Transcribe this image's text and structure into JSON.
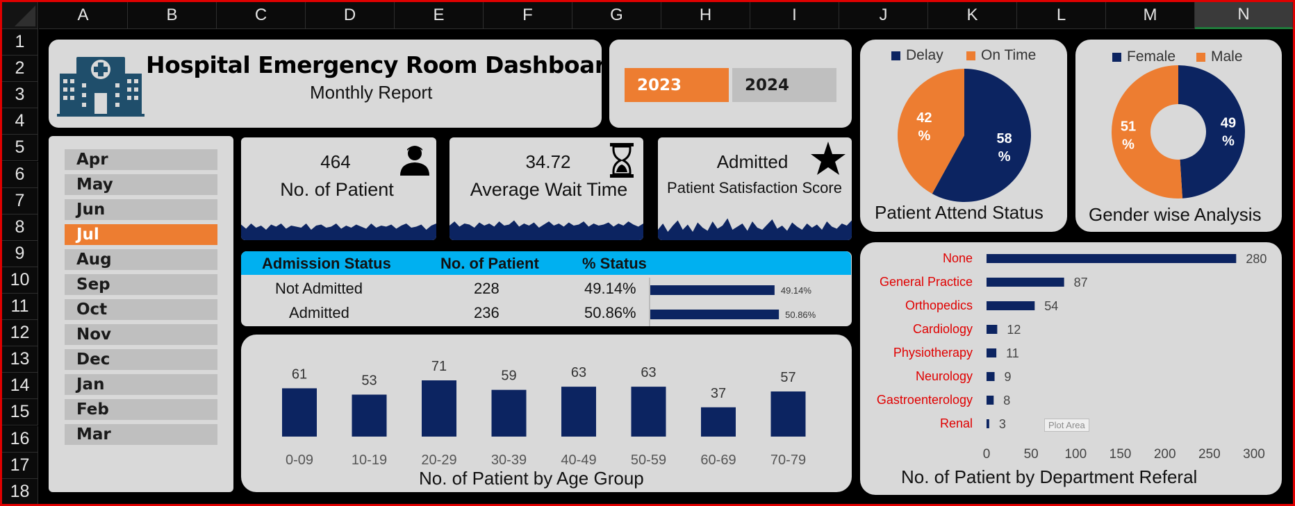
{
  "spreadsheet": {
    "columns": [
      "A",
      "B",
      "C",
      "D",
      "E",
      "F",
      "G",
      "H",
      "I",
      "J",
      "K",
      "L",
      "M",
      "N"
    ],
    "selected_column": "N",
    "rows": [
      "1",
      "2",
      "3",
      "4",
      "5",
      "6",
      "7",
      "8",
      "9",
      "10",
      "11",
      "12",
      "13",
      "14",
      "15",
      "16",
      "17",
      "18"
    ]
  },
  "header": {
    "title": "Hospital Emergency Room Dashboard",
    "subtitle": "Monthly Report",
    "icon": "hospital-building-icon"
  },
  "years": {
    "items": [
      {
        "label": "2023",
        "active": true
      },
      {
        "label": "2024",
        "active": false
      }
    ],
    "active_color": "#ed7d31",
    "inactive_color": "#bfbfbf"
  },
  "months": {
    "items": [
      "Apr",
      "May",
      "Jun",
      "Jul",
      "Aug",
      "Sep",
      "Oct",
      "Nov",
      "Dec",
      "Jan",
      "Feb",
      "Mar"
    ],
    "active": "Jul"
  },
  "kpis": [
    {
      "value": "464",
      "label": "No. of Patient",
      "icon": "person-icon",
      "spark": [
        0.55,
        0.35,
        0.6,
        0.4,
        0.5,
        0.3,
        0.55,
        0.45,
        0.6,
        0.35,
        0.5,
        0.45,
        0.4,
        0.6,
        0.3,
        0.5,
        0.55,
        0.4,
        0.45,
        0.6,
        0.35,
        0.5,
        0.4,
        0.55,
        0.45,
        0.35,
        0.6,
        0.4,
        0.5,
        0.45,
        0.55,
        0.35,
        0.5,
        0.6,
        0.4,
        0.45,
        0.55,
        0.3,
        0.5,
        0.6
      ]
    },
    {
      "value": "34.72",
      "label": "Average Wait Time",
      "icon": "hourglass-icon",
      "spark": [
        0.5,
        0.7,
        0.45,
        0.6,
        0.55,
        0.4,
        0.65,
        0.5,
        0.6,
        0.45,
        0.7,
        0.5,
        0.55,
        0.75,
        0.45,
        0.6,
        0.5,
        0.65,
        0.4,
        0.55,
        0.7,
        0.5,
        0.6,
        0.45,
        0.65,
        0.5,
        0.55,
        0.7,
        0.45,
        0.6,
        0.5,
        0.55,
        0.65,
        0.45,
        0.6,
        0.5,
        0.7,
        0.55,
        0.45,
        0.6
      ]
    },
    {
      "value": "Admitted",
      "label": "Patient Satisfaction Score",
      "icon": "star-icon",
      "spark": [
        0.3,
        0.6,
        0.2,
        0.5,
        0.75,
        0.3,
        0.55,
        0.2,
        0.65,
        0.4,
        0.25,
        0.7,
        0.35,
        0.5,
        0.85,
        0.3,
        0.45,
        0.6,
        0.25,
        0.7,
        0.4,
        0.3,
        0.55,
        0.8,
        0.35,
        0.5,
        0.25,
        0.65,
        0.45,
        0.3,
        0.6,
        0.4,
        0.55,
        0.3,
        0.7,
        0.45,
        0.35,
        0.6,
        0.5,
        0.75
      ]
    }
  ],
  "spark_color": "#0c2461",
  "admission": {
    "headers": [
      "Admission Status",
      "No. of Patient",
      "% Status"
    ],
    "rows": [
      {
        "status": "Not Admitted",
        "count": "228",
        "pct": "49.14%",
        "pct_value": 49.14,
        "bar_label": "49.14%"
      },
      {
        "status": "Admitted",
        "count": "236",
        "pct": "50.86%",
        "pct_value": 50.86,
        "bar_label": "50.86%"
      }
    ],
    "header_color": "#00b0f0"
  },
  "attend_chart": {
    "type": "pie",
    "title": "Patient Attend Status",
    "legend": [
      "Delay",
      "On Time"
    ],
    "slices": [
      {
        "name": "Delay",
        "value": 58,
        "label_top": "58",
        "label_bottom": "%",
        "color": "#0c2461"
      },
      {
        "name": "On Time",
        "value": 42,
        "label_top": "42",
        "label_bottom": "%",
        "color": "#ed7d31"
      }
    ]
  },
  "gender_chart": {
    "type": "pie",
    "title": "Gender wise Analysis",
    "legend": [
      "Female",
      "Male"
    ],
    "slices": [
      {
        "name": "Female",
        "value": 49,
        "label_top": "49",
        "label_bottom": "%",
        "color": "#0c2461"
      },
      {
        "name": "Male",
        "value": 51,
        "label_top": "51",
        "label_bottom": "%",
        "color": "#ed7d31"
      }
    ]
  },
  "chart_data": [
    {
      "type": "bar",
      "title": "No. of Patient by Age Group",
      "categories": [
        "0-09",
        "10-19",
        "20-29",
        "30-39",
        "40-49",
        "50-59",
        "60-69",
        "70-79"
      ],
      "values": [
        61,
        53,
        71,
        59,
        63,
        63,
        37,
        57
      ],
      "ylim": [
        0,
        80
      ],
      "color": "#0c2461"
    },
    {
      "type": "bar",
      "orientation": "horizontal",
      "title": "No. of Patient by Department Referal",
      "categories": [
        "None",
        "General Practice",
        "Orthopedics",
        "Cardiology",
        "Physiotherapy",
        "Neurology",
        "Gastroenterology",
        "Renal"
      ],
      "values": [
        280,
        87,
        54,
        12,
        11,
        9,
        8,
        3
      ],
      "xticks": [
        "0",
        "50",
        "100",
        "150",
        "200",
        "250",
        "300"
      ],
      "xlim": [
        0,
        300
      ],
      "color": "#0c2461",
      "category_color": "#e00000"
    }
  ],
  "tooltip": "Plot Area"
}
